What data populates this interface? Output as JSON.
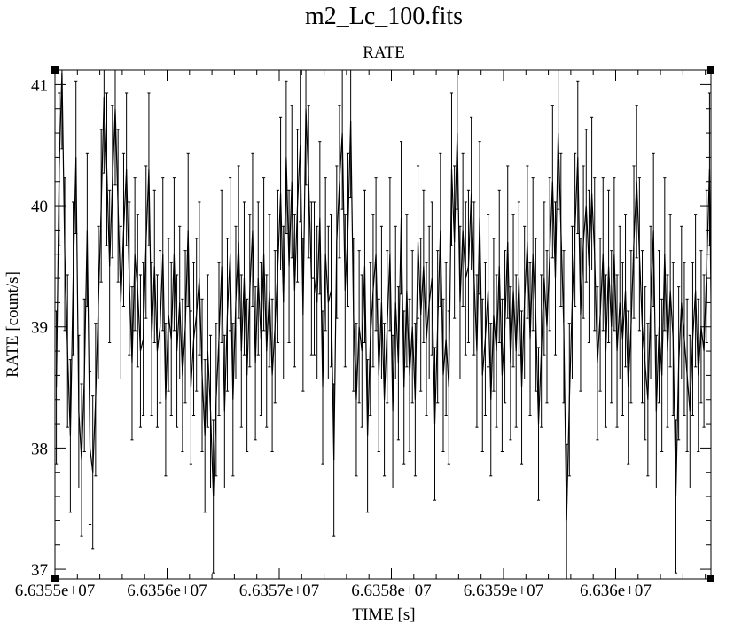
{
  "chart_data": {
    "type": "line",
    "title": "m2_Lc_100.fits",
    "subtitle": "RATE",
    "xlabel": "TIME [s]",
    "ylabel": "RATE [count/s]",
    "xlim": [
      66355000,
      66360850
    ],
    "ylim": [
      36.92,
      41.12
    ],
    "x_ticks": [
      66355000,
      66356000,
      66357000,
      66358000,
      66359000,
      66360000
    ],
    "x_tick_labels": [
      "6.6355e+07",
      "6.6356e+07",
      "6.6357e+07",
      "6.6358e+07",
      "6.6359e+07",
      "6.636e+07"
    ],
    "y_ticks": [
      37,
      38,
      39,
      40,
      41
    ],
    "y_tick_labels": [
      "37",
      "38",
      "39",
      "40",
      "41"
    ],
    "bin_width": 25,
    "error": 0.63,
    "grid": false,
    "line_color": "#000000",
    "values": [
      38.5,
      40.3,
      41.1,
      39.6,
      38.8,
      38.1,
      39.4,
      40.4,
      38.3,
      37.9,
      38.6,
      39.8,
      38.0,
      37.8,
      38.4,
      39.2,
      40.0,
      40.9,
      40.3,
      39.5,
      40.2,
      40.8,
      40.0,
      39.2,
      39.8,
      40.3,
      39.4,
      38.7,
      39.6,
      39.3,
      38.8,
      38.9,
      39.7,
      40.3,
      38.9,
      39.5,
      38.8,
      39.0,
      39.6,
      38.4,
      39.1,
      38.9,
      39.6,
      38.8,
      39.2,
      38.6,
      39.0,
      39.8,
      38.5,
      38.9,
      39.1,
      39.4,
      38.6,
      38.1,
      38.8,
      38.3,
      37.6,
      38.4,
      38.9,
      39.5,
      38.3,
      39.1,
      39.6,
      38.4,
      39.2,
      39.7,
      38.8,
      39.4,
      38.6,
      39.3,
      39.8,
      38.7,
      39.4,
      38.9,
      39.6,
      38.8,
      39.3,
      38.6,
      39.0,
      39.5,
      40.1,
      39.2,
      40.4,
      39.5,
      40.2,
      39.3,
      40.0,
      40.5,
      39.1,
      40.8,
      40.2,
      39.4,
      39.4,
      39.2,
      39.9,
      38.5,
      39.6,
      39.2,
      39.3,
      37.9,
      39.7,
      40.2,
      40.6,
      39.3,
      39.8,
      40.7,
      39.1,
      38.4,
      39.0,
      38.8,
      39.5,
      38.1,
      38.9,
      39.3,
      39.6,
      38.6,
      39.2,
      38.4,
      39.0,
      39.6,
      38.3,
      39.2,
      38.7,
      39.9,
      38.5,
      39.3,
      38.6,
      39.0,
      38.4,
      39.7,
      39.1,
      39.5,
      38.9,
      39.2,
      39.4,
      38.2,
      39.0,
      39.8,
      38.6,
      38.9,
      38.5,
      40.3,
      39.7,
      40.6,
      39.2,
      39.8,
      39.4,
      39.5,
      40.1,
      39.4,
      38.8,
      39.9,
      38.6,
      38.9,
      39.3,
      38.4,
      39.1,
      38.8,
      39.5,
      38.6,
      39.0,
      39.7,
      38.7,
      39.3,
      38.8,
      39.4,
      38.5,
      39.2,
      39.7,
      38.9,
      39.6,
      39.1,
      38.2,
      38.8,
      39.4,
      39.0,
      39.6,
      40.2,
      39.4,
      40.6,
      39.8,
      39.0,
      37.4,
      38.4,
      39.2,
      39.8,
      40.4,
      39.1,
      39.7,
      40.0,
      39.5,
      40.1,
      39.6,
      38.7,
      39.1,
      39.6,
      38.8,
      39.5,
      39.0,
      39.6,
      38.8,
      39.2,
      38.9,
      39.3,
      38.5,
      39.0,
      39.7,
      40.2,
      39.6,
      39.0,
      38.7,
      38.4,
      39.2,
      39.8,
      38.3,
      39.0,
      38.6,
      39.6,
      38.8,
      39.3,
      38.9,
      37.6,
      38.7,
      39.2,
      38.9,
      38.6,
      38.3,
      38.9,
      39.3,
      38.6,
      39.0,
      38.8,
      39.5,
      40.3,
      38.2,
      37.5
    ]
  }
}
